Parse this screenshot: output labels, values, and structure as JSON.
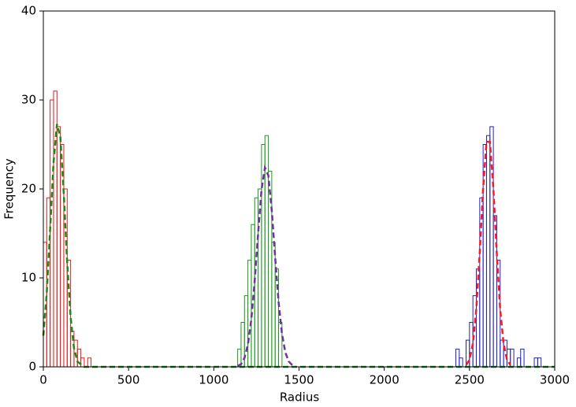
{
  "chart_data": {
    "type": "histogram",
    "xlabel": "Radius",
    "ylabel": "Frequency",
    "xlim": [
      0,
      3000
    ],
    "ylim": [
      0,
      40
    ],
    "xticks": [
      0,
      500,
      1000,
      1500,
      2000,
      2500,
      3000
    ],
    "yticks": [
      0,
      10,
      20,
      30,
      40
    ],
    "series": [
      {
        "type": "histogram",
        "color": "#e31a1c",
        "bins": [
          0,
          20,
          40,
          60,
          80,
          100,
          120,
          140,
          160,
          180,
          200,
          220,
          240,
          260,
          280
        ],
        "values": [
          14,
          19,
          30,
          31,
          27,
          25,
          20,
          12,
          4,
          3,
          2,
          1,
          0,
          1
        ]
      },
      {
        "type": "histogram",
        "color": "#1a9a1a",
        "bins": [
          1140,
          1160,
          1180,
          1200,
          1220,
          1240,
          1260,
          1280,
          1300,
          1320,
          1340,
          1360,
          1380,
          1400
        ],
        "values": [
          2,
          5,
          8,
          12,
          16,
          19,
          20,
          25,
          26,
          22,
          14,
          11,
          5
        ]
      },
      {
        "type": "histogram",
        "color": "#1f1fd0",
        "bins": [
          2420,
          2440,
          2460,
          2480,
          2500,
          2520,
          2540,
          2560,
          2580,
          2600,
          2620,
          2640,
          2660,
          2680,
          2700,
          2720,
          2740,
          2760,
          2780,
          2800,
          2820,
          2840,
          2860,
          2880,
          2900,
          2920
        ],
        "values": [
          2,
          1,
          0,
          3,
          5,
          8,
          11,
          19,
          25,
          26,
          27,
          17,
          12,
          3,
          3,
          2,
          2,
          0,
          1,
          2,
          0,
          0,
          0,
          1,
          1
        ]
      },
      {
        "type": "line",
        "color": "#1a8a1a",
        "x": [
          0,
          20,
          40,
          60,
          80,
          100,
          120,
          140,
          160,
          180,
          200,
          240,
          3000
        ],
        "values": [
          3.5,
          8.3,
          15.5,
          23.0,
          27.3,
          25.8,
          19.4,
          11.7,
          5.6,
          2.1,
          0.6,
          0,
          0
        ]
      },
      {
        "type": "line",
        "color": "#7030a0",
        "x": [
          1140,
          1160,
          1180,
          1200,
          1220,
          1240,
          1260,
          1280,
          1300,
          1320,
          1340,
          1360,
          1380,
          1400,
          1420,
          1440,
          1460,
          1480
        ],
        "values": [
          0.1,
          0.3,
          1.0,
          2.5,
          5.3,
          9.7,
          15.0,
          19.9,
          22.4,
          21.5,
          17.6,
          12.3,
          7.3,
          3.7,
          1.6,
          0.6,
          0.2,
          0
        ]
      },
      {
        "type": "line",
        "color": "#ff1a1a",
        "x": [
          2480,
          2500,
          2520,
          2540,
          2560,
          2580,
          2600,
          2620,
          2640,
          2660,
          2680,
          2700,
          2720,
          2740
        ],
        "values": [
          0.2,
          0.8,
          2.6,
          6.5,
          12.8,
          20.1,
          25.3,
          25.3,
          20.1,
          12.8,
          6.5,
          2.6,
          0.8,
          0.2
        ]
      }
    ]
  }
}
